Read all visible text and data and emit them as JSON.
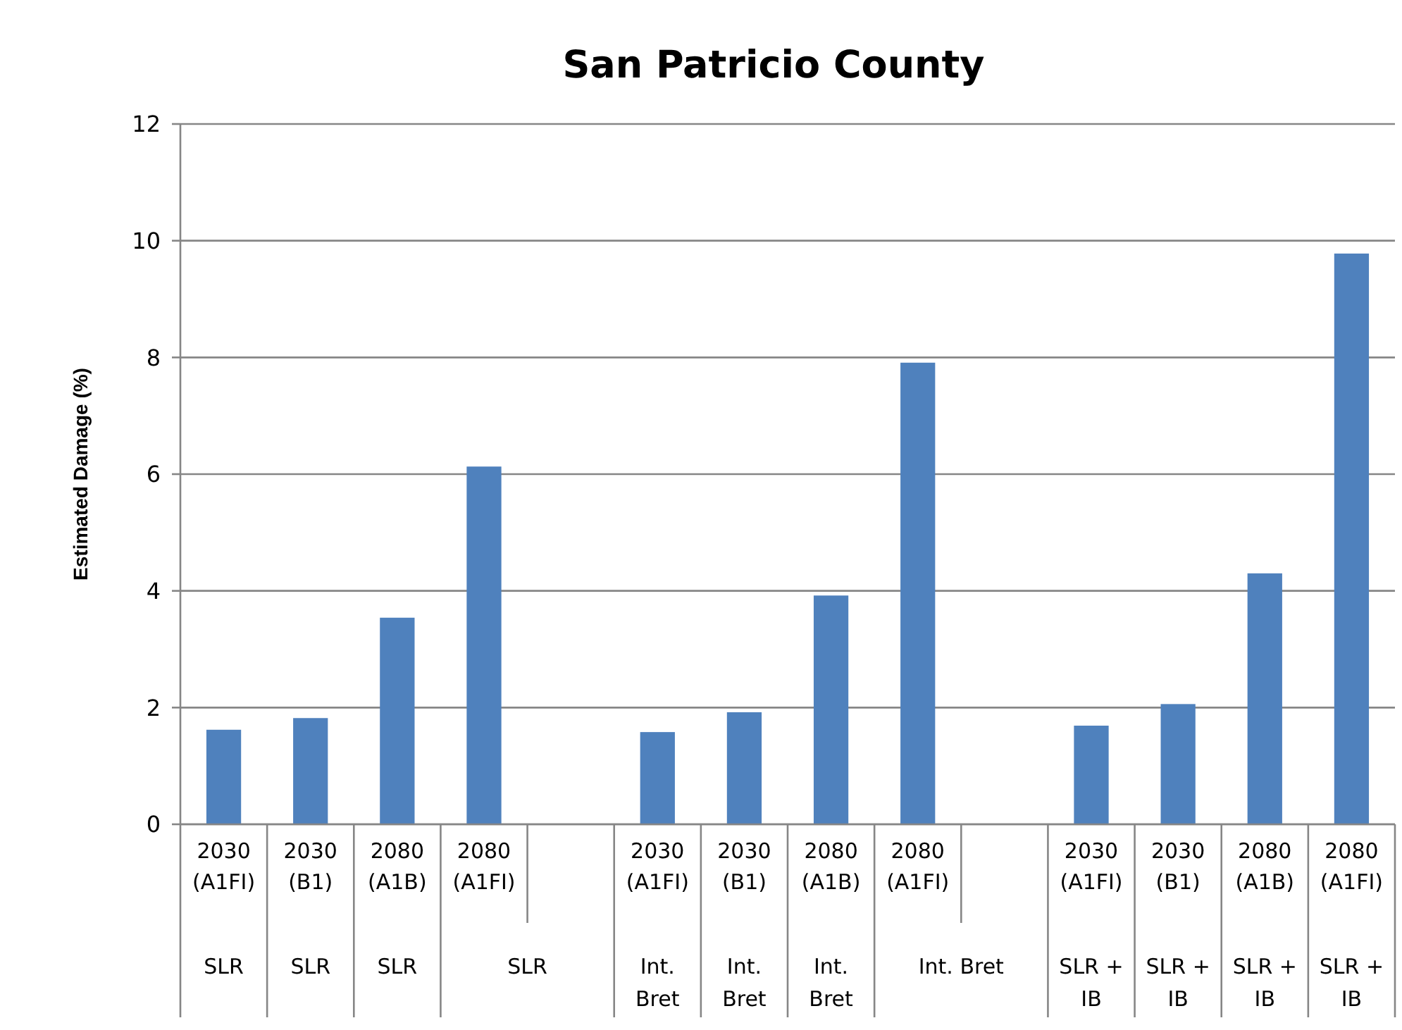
{
  "chart_data": {
    "type": "bar",
    "title": "San Patricio County",
    "ylabel": "Estimated Damage (%)",
    "categories": [
      "2030 (A1FI)\nSLR",
      "2030 (B1)\nSLR",
      "2080 (A1B)\nSLR",
      "2080 (A1FI)\nSLR",
      null,
      "2030 (A1FI)\nInt. Bret",
      "2030 (B1)\nInt. Bret",
      "2080 (A1B)\nInt. Bret",
      "2080 (A1FI)\nInt. Bret",
      null,
      "2030 (A1FI)\nSLR + IB",
      "2030 (B1)\nSLR + IB",
      "2080 (A1B)\nSLR + IB",
      "2080 (A1FI)\nSLR + IB"
    ],
    "values": [
      1.62,
      1.82,
      3.54,
      6.13,
      null,
      1.58,
      1.92,
      3.92,
      7.91,
      null,
      1.69,
      2.06,
      4.3,
      9.78
    ],
    "color": "#4f81bd",
    "ylim": [
      0,
      12
    ],
    "yticks": [
      0,
      2,
      4,
      6,
      8,
      10,
      12
    ],
    "grid": "y"
  }
}
